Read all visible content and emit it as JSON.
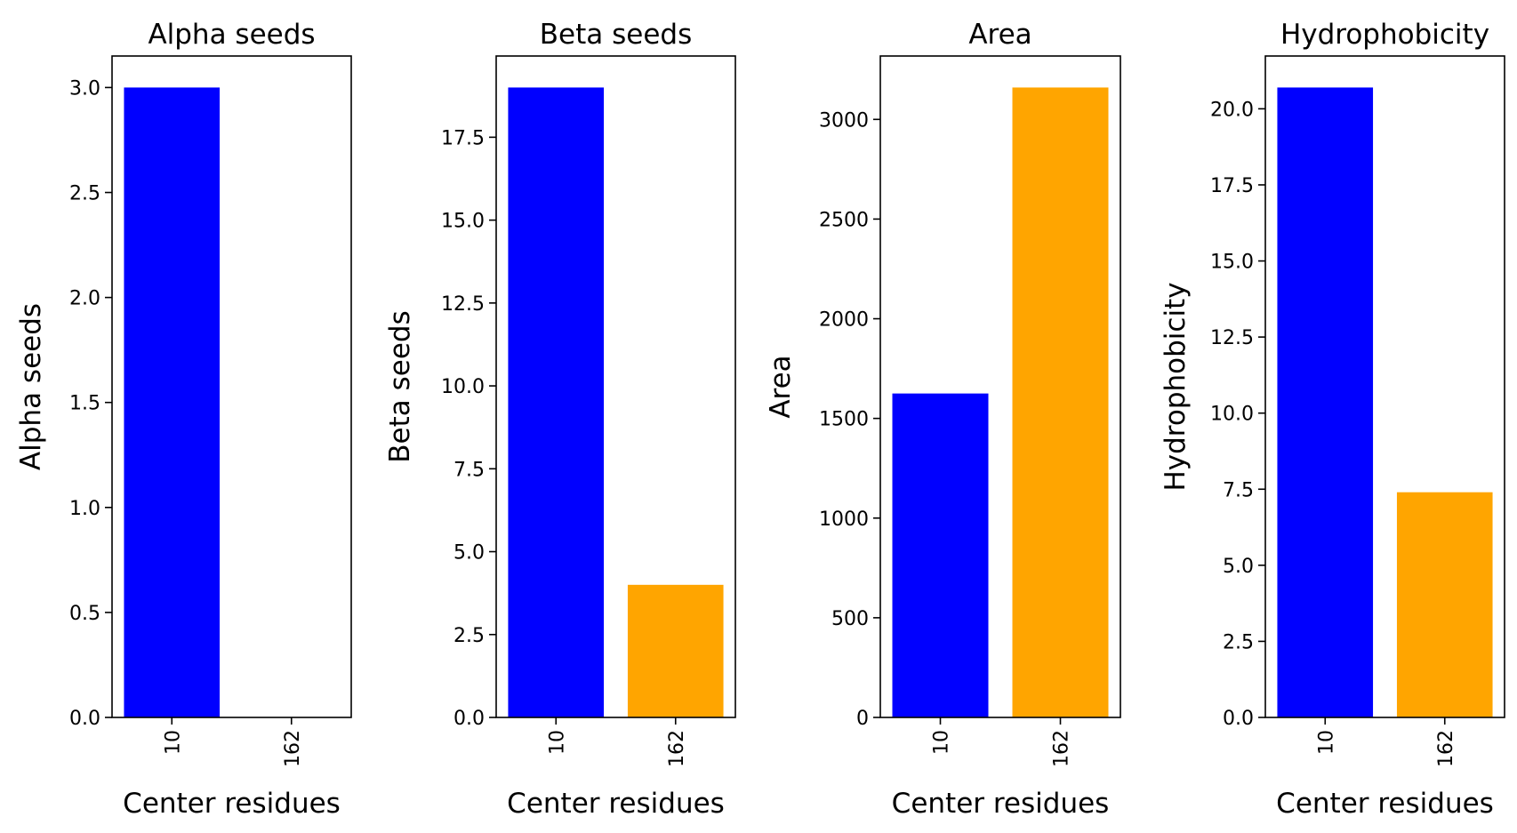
{
  "chart_data": [
    {
      "type": "bar",
      "title": "Alpha seeds",
      "xlabel": "Center residues",
      "ylabel": "Alpha seeds",
      "categories": [
        "10",
        "162"
      ],
      "values": [
        3,
        0
      ],
      "colors": [
        "#0000ff",
        "#ffa500"
      ],
      "ylim": [
        0,
        3.15
      ],
      "yticks": [
        0.0,
        0.5,
        1.0,
        1.5,
        2.0,
        2.5,
        3.0
      ],
      "ytick_labels": [
        "0.0",
        "0.5",
        "1.0",
        "1.5",
        "2.0",
        "2.5",
        "3.0"
      ],
      "grid": false
    },
    {
      "type": "bar",
      "title": "Beta seeds",
      "xlabel": "Center residues",
      "ylabel": "Beta seeds",
      "categories": [
        "10",
        "162"
      ],
      "values": [
        19,
        4
      ],
      "colors": [
        "#0000ff",
        "#ffa500"
      ],
      "ylim": [
        0,
        19.95
      ],
      "yticks": [
        0.0,
        2.5,
        5.0,
        7.5,
        10.0,
        12.5,
        15.0,
        17.5
      ],
      "ytick_labels": [
        "0.0",
        "2.5",
        "5.0",
        "7.5",
        "10.0",
        "12.5",
        "15.0",
        "17.5"
      ],
      "grid": false
    },
    {
      "type": "bar",
      "title": "Area",
      "xlabel": "Center residues",
      "ylabel": "Area",
      "categories": [
        "10",
        "162"
      ],
      "values": [
        1625,
        3160
      ],
      "colors": [
        "#0000ff",
        "#ffa500"
      ],
      "ylim": [
        0,
        3318
      ],
      "yticks": [
        0,
        500,
        1000,
        1500,
        2000,
        2500,
        3000
      ],
      "ytick_labels": [
        "0",
        "500",
        "1000",
        "1500",
        "2000",
        "2500",
        "3000"
      ],
      "grid": false
    },
    {
      "type": "bar",
      "title": "Hydrophobicity",
      "xlabel": "Center residues",
      "ylabel": "Hydrophobicity",
      "categories": [
        "10",
        "162"
      ],
      "values": [
        20.7,
        7.4
      ],
      "colors": [
        "#0000ff",
        "#ffa500"
      ],
      "ylim": [
        0,
        21.735
      ],
      "yticks": [
        0.0,
        2.5,
        5.0,
        7.5,
        10.0,
        12.5,
        15.0,
        17.5,
        20.0
      ],
      "ytick_labels": [
        "0.0",
        "2.5",
        "5.0",
        "7.5",
        "10.0",
        "12.5",
        "15.0",
        "17.5",
        "20.0"
      ],
      "grid": false
    }
  ]
}
